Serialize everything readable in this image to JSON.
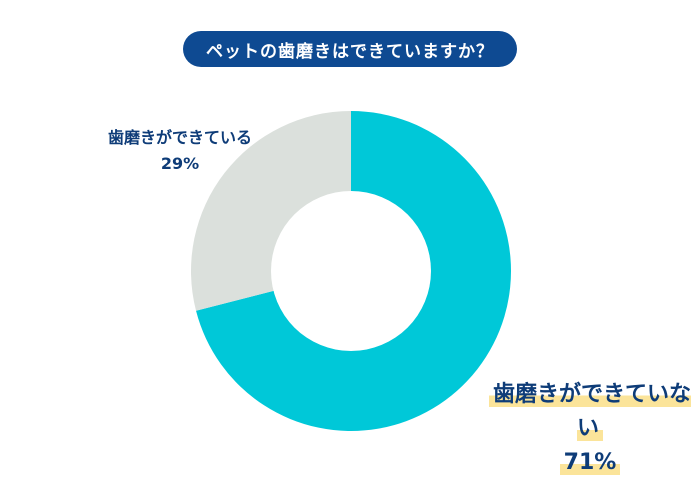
{
  "title": "ペットの歯磨きはできていますか？",
  "colors": {
    "title_bg": "#0e4a92",
    "title_text": "#ffffff",
    "label_text": "#0e3c78",
    "highlight": "#fbe49a",
    "slice_done": "#dbe0dc",
    "slice_not_done": "#00c8d8"
  },
  "labels": {
    "done": {
      "text": "歯磨きができている",
      "percent": "29%"
    },
    "not_done": {
      "text": "歯磨きができていない",
      "percent": "71%"
    }
  },
  "chart_data": {
    "type": "pie",
    "variant": "donut",
    "title": "ペットの歯磨きはできていますか？",
    "categories": [
      "歯磨きができていない",
      "歯磨きができている"
    ],
    "values": [
      71,
      29
    ],
    "unit": "%",
    "colors": [
      "#00c8d8",
      "#dbe0dc"
    ],
    "start_angle": "12 o'clock, clockwise",
    "legend": "none (direct labels)"
  }
}
